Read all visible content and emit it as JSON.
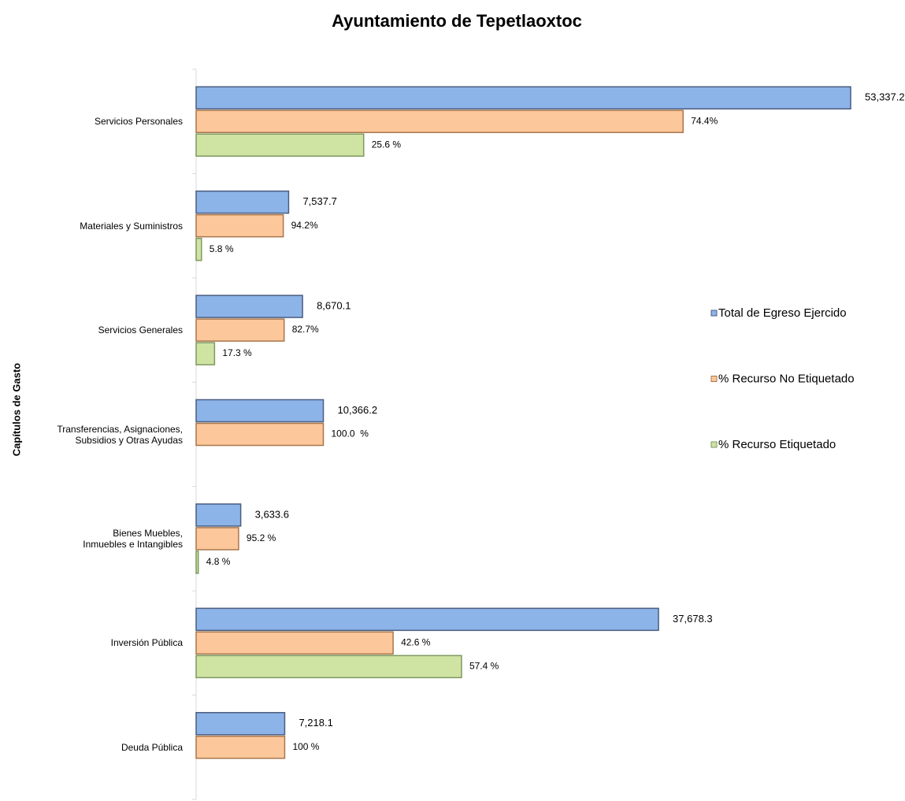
{
  "chart_data": {
    "type": "bar",
    "orientation": "horizontal",
    "title": "Ayuntamiento de Tepetlaoxtoc",
    "y_label": "Capítulos de Gasto",
    "categories": [
      "Servicios Personales",
      "Materiales y Suministros",
      "Servicios Generales",
      "Transferencias, Asignaciones,\nSubsidios y Otras Ayudas",
      "Bienes Muebles,\nInmuebles e Intangibles",
      "Inversión Pública",
      "Deuda Pública"
    ],
    "series": [
      {
        "name": "Total de Egreso Ejercido",
        "color": "#8db4e8",
        "values": [
          53337.2,
          7537.7,
          8670.1,
          10366.2,
          3633.6,
          37678.3,
          7218.1
        ],
        "value_labels": [
          "53,337.2",
          "7,537.7",
          "8,670.1",
          "10,366.2",
          "3,633.6",
          "37,678.3",
          "7,218.1"
        ]
      },
      {
        "name": "% Recurso No Etiquetado",
        "color": "#fcc79a",
        "values": [
          74.4,
          94.2,
          82.7,
          100,
          95.2,
          42.6,
          100
        ],
        "value_labels": [
          "74.4%",
          "94.2%",
          "82.7%",
          "100.0  %",
          "95.2 %",
          "42.6 %",
          "100 %"
        ]
      },
      {
        "name": "% Recurso Etiquetado",
        "color": "#cfe3a3",
        "values": [
          25.6,
          5.8,
          17.3,
          null,
          4.8,
          57.4,
          null
        ],
        "value_labels": [
          "25.6 %",
          "5.8 %",
          "17.3 %",
          null,
          "4.8 %",
          "57.4 %",
          null
        ]
      }
    ],
    "legend": "right"
  }
}
